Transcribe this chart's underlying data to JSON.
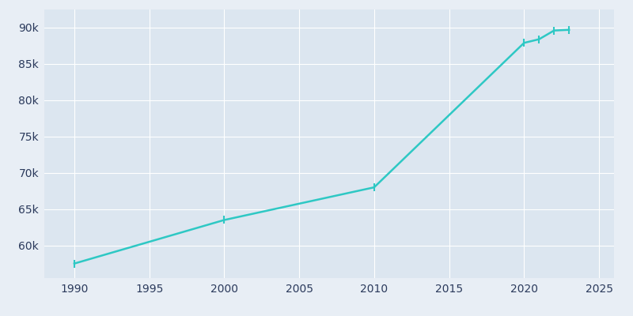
{
  "years": [
    1990,
    2000,
    2010,
    2020,
    2021,
    2022,
    2023
  ],
  "population": [
    57500,
    63500,
    68000,
    87900,
    88400,
    89600,
    89700
  ],
  "line_color": "#2ec8c4",
  "marker_color": "#2ec8c4",
  "bg_color": "#e8eef5",
  "axes_bg_color": "#dce6f0",
  "grid_color": "#ffffff",
  "tick_label_color": "#2b3a5c",
  "xlim": [
    1988,
    2026
  ],
  "ylim": [
    55500,
    92500
  ],
  "xticks": [
    1990,
    1995,
    2000,
    2005,
    2010,
    2015,
    2020,
    2025
  ],
  "ytick_values": [
    60000,
    65000,
    70000,
    75000,
    80000,
    85000,
    90000
  ],
  "ytick_labels": [
    "60k",
    "65k",
    "70k",
    "75k",
    "80k",
    "85k",
    "90k"
  ],
  "line_width": 1.8,
  "marker_size": 3.5
}
